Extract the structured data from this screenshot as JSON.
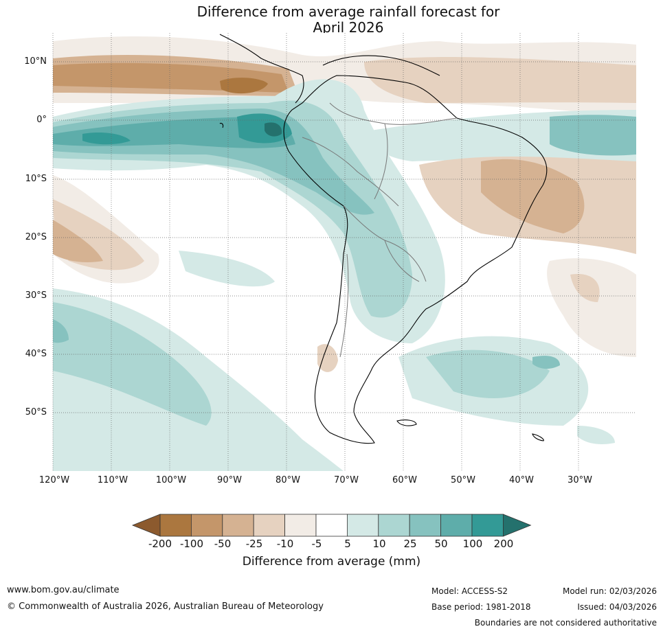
{
  "title": {
    "line1": "Difference from average rainfall forecast for",
    "line2": "April 2026"
  },
  "map": {
    "lat_labels": [
      "10°N",
      "0°",
      "10°S",
      "20°S",
      "30°S",
      "40°S",
      "50°S"
    ],
    "lon_labels": [
      "120°W",
      "110°W",
      "100°W",
      "90°W",
      "80°W",
      "70°W",
      "60°W",
      "50°W",
      "40°W",
      "30°W"
    ]
  },
  "colorbar": {
    "title": "Difference from average (mm)",
    "ticks": [
      "-200",
      "-100",
      "-50",
      "-25",
      "-10",
      "-5",
      "5",
      "10",
      "25",
      "50",
      "100",
      "200"
    ],
    "colors": [
      "#8c5a2e",
      "#ab773f",
      "#c4966a",
      "#d5b292",
      "#e6d2c0",
      "#f2ece6",
      "#ffffff",
      "#d4e9e6",
      "#acd6d2",
      "#86c2bf",
      "#5eadaa",
      "#339a96",
      "#24716d"
    ]
  },
  "footer": {
    "website": "www.bom.gov.au/climate",
    "copyright": "© Commonwealth of Australia 2026, Australian Bureau of Meteorology",
    "model": "Model: ACCESS-S2",
    "base_period": "Base period: 1981-2018",
    "model_run": "Model run: 02/03/2026",
    "issued": "Issued: 04/03/2026",
    "disclaimer": "Boundaries are not considered authoritative"
  }
}
